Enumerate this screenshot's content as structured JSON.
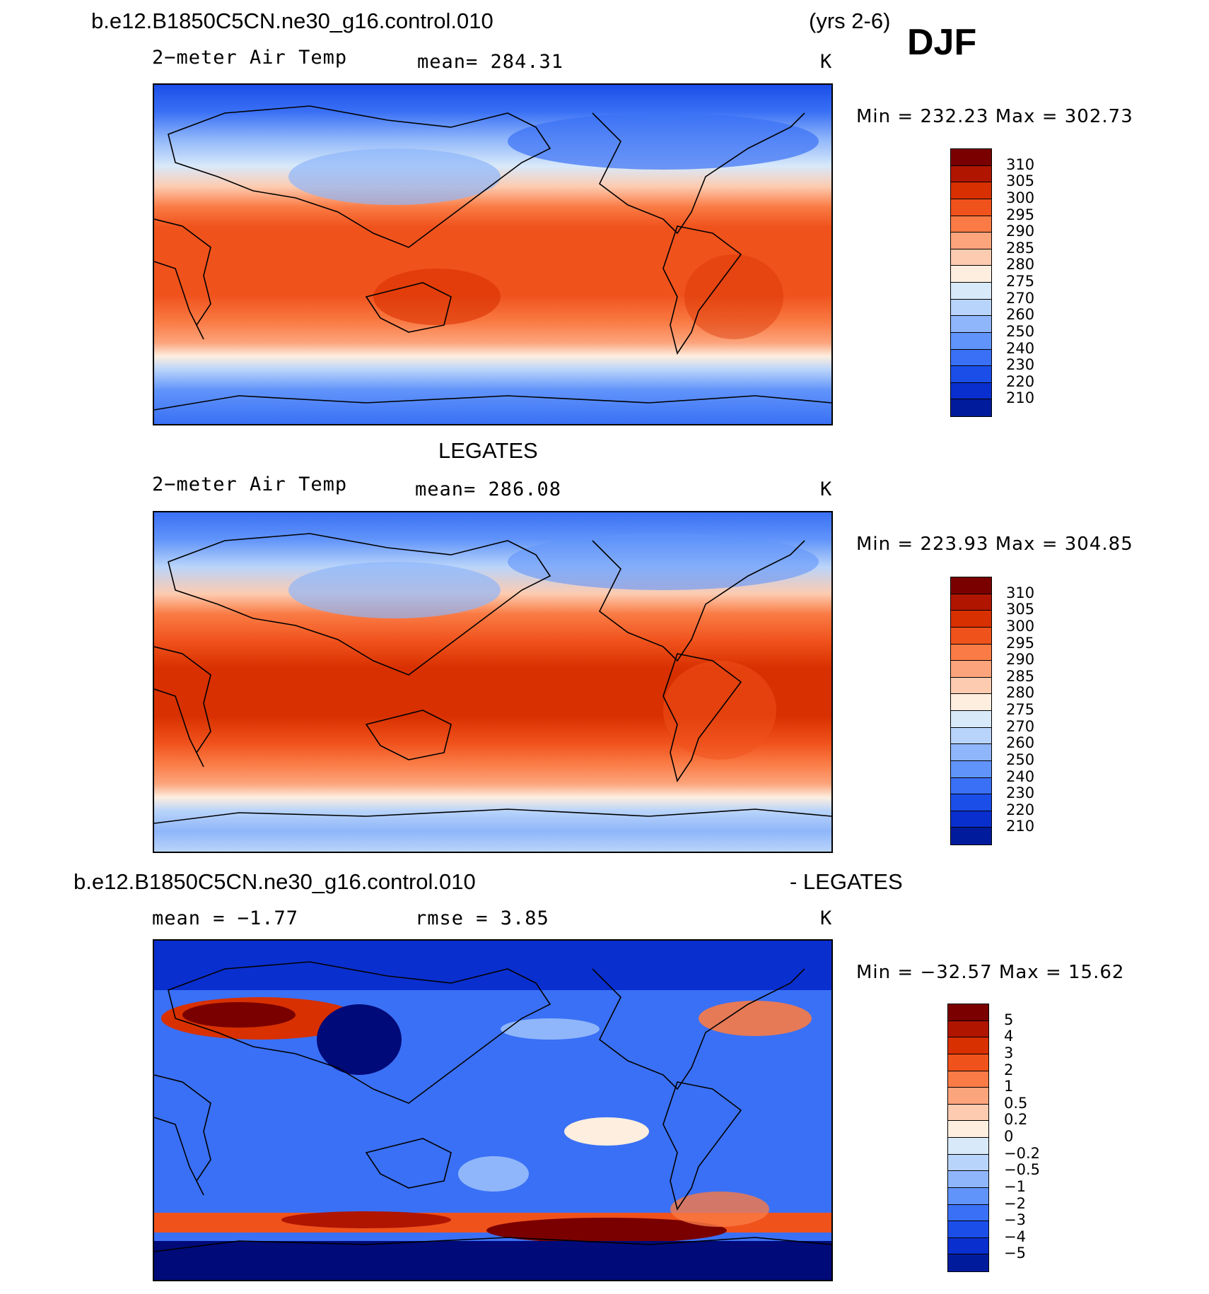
{
  "header": {
    "case": "b.e12.B1850C5CN.ne30_g16.control.010",
    "years": "(yrs 2-6)",
    "season": "DJF"
  },
  "panels": [
    {
      "title": "",
      "variable": "2−meter Air Temp",
      "stat": "mean= 284.31",
      "units": "K",
      "minmax": "Min = 232.23 Max = 302.73",
      "colorbar_labels": [
        "310",
        "305",
        "300",
        "295",
        "290",
        "285",
        "280",
        "275",
        "270",
        "260",
        "250",
        "240",
        "230",
        "220",
        "210"
      ]
    },
    {
      "title": "LEGATES",
      "variable": "2−meter Air Temp",
      "stat": "mean= 286.08",
      "units": "K",
      "minmax": "Min = 223.93 Max = 304.85",
      "colorbar_labels": [
        "310",
        "305",
        "300",
        "295",
        "290",
        "285",
        "280",
        "275",
        "270",
        "260",
        "250",
        "240",
        "230",
        "220",
        "210"
      ]
    },
    {
      "title": "b.e12.B1850C5CN.ne30_g16.control.010",
      "title_right": "- LEGATES",
      "stat_mean": "mean =   −1.77",
      "stat_rmse": "rmse =     3.85",
      "units": "K",
      "minmax": "Min = −32.57 Max =   15.62",
      "colorbar_labels": [
        "5",
        "4",
        "3",
        "2",
        "1",
        "0.5",
        "0.2",
        "0",
        "−0.2",
        "−0.5",
        "−1",
        "−2",
        "−3",
        "−4",
        "−5"
      ]
    }
  ],
  "colors": {
    "scale": [
      "#7a0000",
      "#b01500",
      "#d83000",
      "#f0521c",
      "#fa7b45",
      "#fca47c",
      "#fdcbb0",
      "#fdeedf",
      "#d8e9fa",
      "#b9d4fa",
      "#8fb6fa",
      "#6194fa",
      "#3a70f5",
      "#1b4ee8",
      "#0a2fcf",
      "#001c9c",
      "#000a78"
    ]
  },
  "chart_data": [
    {
      "type": "heatmap",
      "title": "",
      "variable": "2-meter Air Temp",
      "units": "K",
      "mean": 284.31,
      "min": 232.23,
      "max": 302.73,
      "colorbar_levels": [
        210,
        220,
        230,
        240,
        250,
        260,
        270,
        275,
        280,
        285,
        290,
        295,
        300,
        305,
        310
      ]
    },
    {
      "type": "heatmap",
      "title": "LEGATES",
      "variable": "2-meter Air Temp",
      "units": "K",
      "mean": 286.08,
      "min": 223.93,
      "max": 304.85,
      "colorbar_levels": [
        210,
        220,
        230,
        240,
        250,
        260,
        270,
        275,
        280,
        285,
        290,
        295,
        300,
        305,
        310
      ]
    },
    {
      "type": "heatmap",
      "title": "b.e12.B1850C5CN.ne30_g16.control.010 - LEGATES",
      "units": "K",
      "mean": -1.77,
      "rmse": 3.85,
      "min": -32.57,
      "max": 15.62,
      "colorbar_levels": [
        -5,
        -4,
        -3,
        -2,
        -1,
        -0.5,
        -0.2,
        0,
        0.2,
        0.5,
        1,
        2,
        3,
        4,
        5
      ]
    }
  ]
}
